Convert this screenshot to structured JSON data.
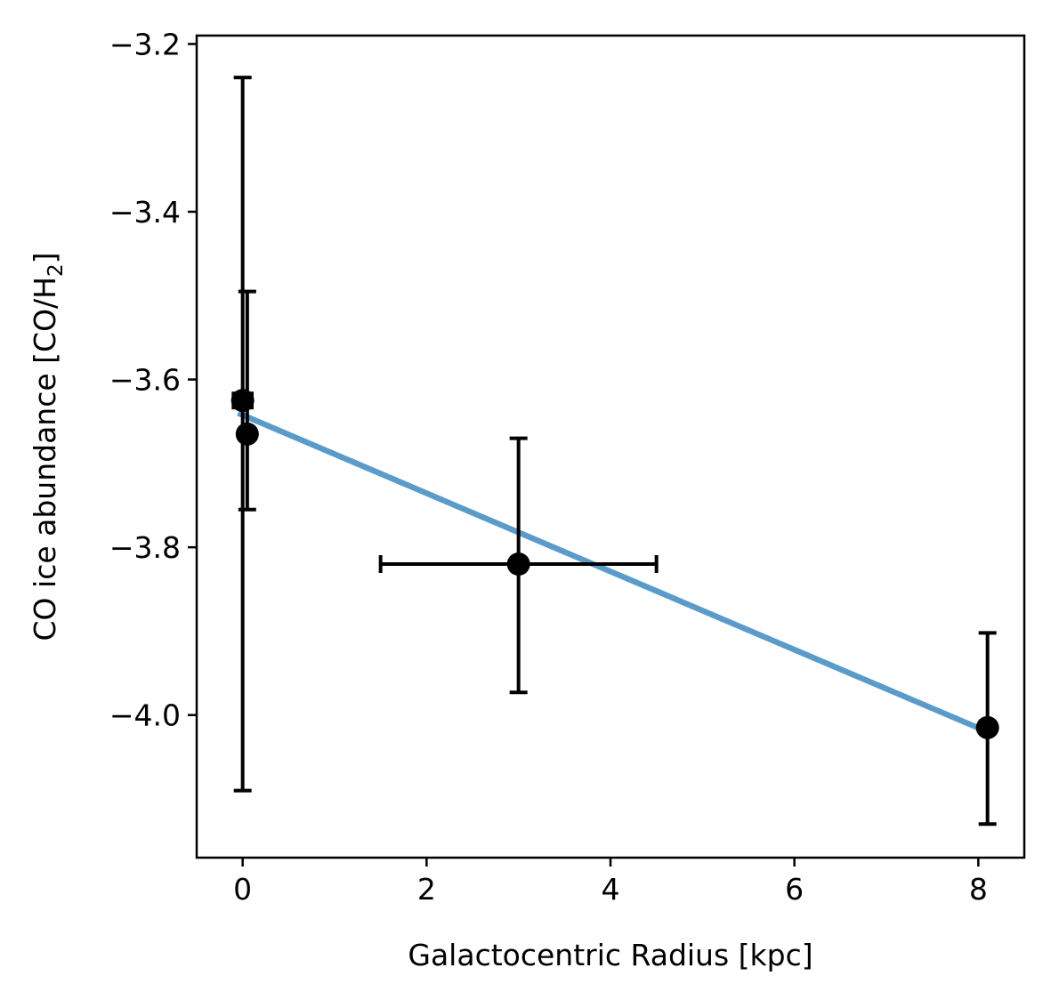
{
  "chart_data": {
    "type": "scatter",
    "xlabel": "Galactocentric Radius [kpc]",
    "ylabel_main": "CO ice abundance [CO/H",
    "ylabel_sub": "2",
    "ylabel_end": "]",
    "xlim": [
      -0.5,
      8.5
    ],
    "ylim": [
      -4.17,
      -3.19
    ],
    "xticks": [
      0,
      2,
      4,
      6,
      8
    ],
    "xtick_labels": [
      "0",
      "2",
      "4",
      "6",
      "8"
    ],
    "yticks": [
      -3.2,
      -3.4,
      -3.6,
      -3.8,
      -4.0
    ],
    "ytick_labels": [
      "−3.2",
      "−3.4",
      "−3.6",
      "−3.8",
      "−4.0"
    ],
    "grid": false,
    "points": [
      {
        "x": 0.0,
        "y": -3.625,
        "yerr_low": 0.465,
        "yerr_high": 0.385,
        "xerr": 0.1
      },
      {
        "x": 0.05,
        "y": -3.665,
        "yerr_low": 0.09,
        "yerr_high": 0.17,
        "xerr": 0
      },
      {
        "x": 3.0,
        "y": -3.82,
        "yerr_low": 0.153,
        "yerr_high": 0.15,
        "xerr": 1.5
      },
      {
        "x": 8.1,
        "y": -4.015,
        "yerr_low": 0.115,
        "yerr_high": 0.113,
        "xerr": 0
      }
    ],
    "fit_line": {
      "x": [
        -0.05,
        8.1
      ],
      "y": [
        -3.64,
        -4.02
      ]
    },
    "colors": {
      "points": "#000000",
      "fit": "#5b9bc9"
    }
  }
}
